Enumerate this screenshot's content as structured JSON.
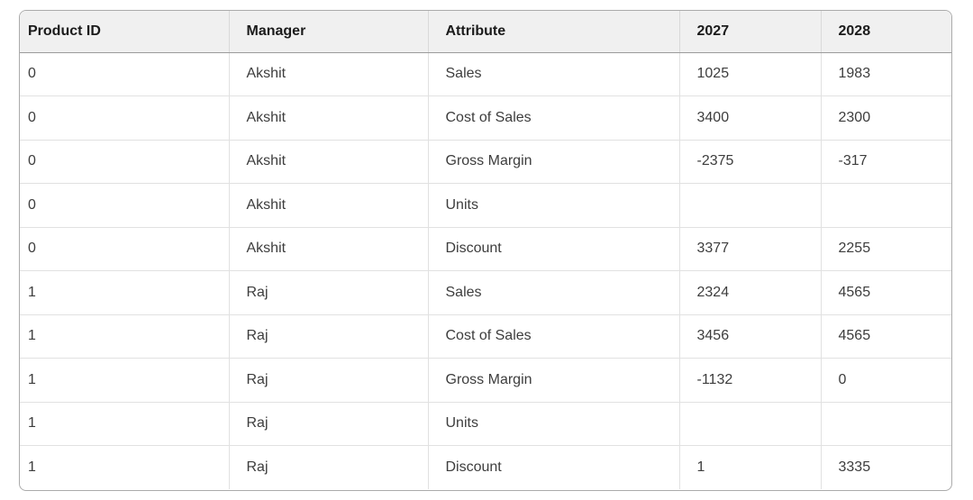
{
  "theme": {
    "header_bg": "#f0f0f0",
    "outer_border": "#ababab",
    "header_bottom_border": "#9b9b9b",
    "grid_line": "#e1e1e1",
    "header_text": "#1b1b1b",
    "body_text": "#3d3d3d"
  },
  "table": {
    "columns": [
      "Product ID",
      "Manager",
      "Attribute",
      "2027",
      "2028"
    ],
    "rows": [
      [
        "0",
        "Akshit",
        "Sales",
        "1025",
        "1983"
      ],
      [
        "0",
        "Akshit",
        "Cost of Sales",
        "3400",
        "2300"
      ],
      [
        "0",
        "Akshit",
        "Gross Margin",
        "-2375",
        "-317"
      ],
      [
        "0",
        "Akshit",
        "Units",
        "",
        ""
      ],
      [
        "0",
        "Akshit",
        "Discount",
        "3377",
        "2255"
      ],
      [
        "1",
        "Raj",
        "Sales",
        "2324",
        "4565"
      ],
      [
        "1",
        "Raj",
        "Cost of Sales",
        "3456",
        "4565"
      ],
      [
        "1",
        "Raj",
        "Gross Margin",
        "-1132",
        "0"
      ],
      [
        "1",
        "Raj",
        "Units",
        "",
        ""
      ],
      [
        "1",
        "Raj",
        "Discount",
        "1",
        "3335"
      ]
    ]
  }
}
